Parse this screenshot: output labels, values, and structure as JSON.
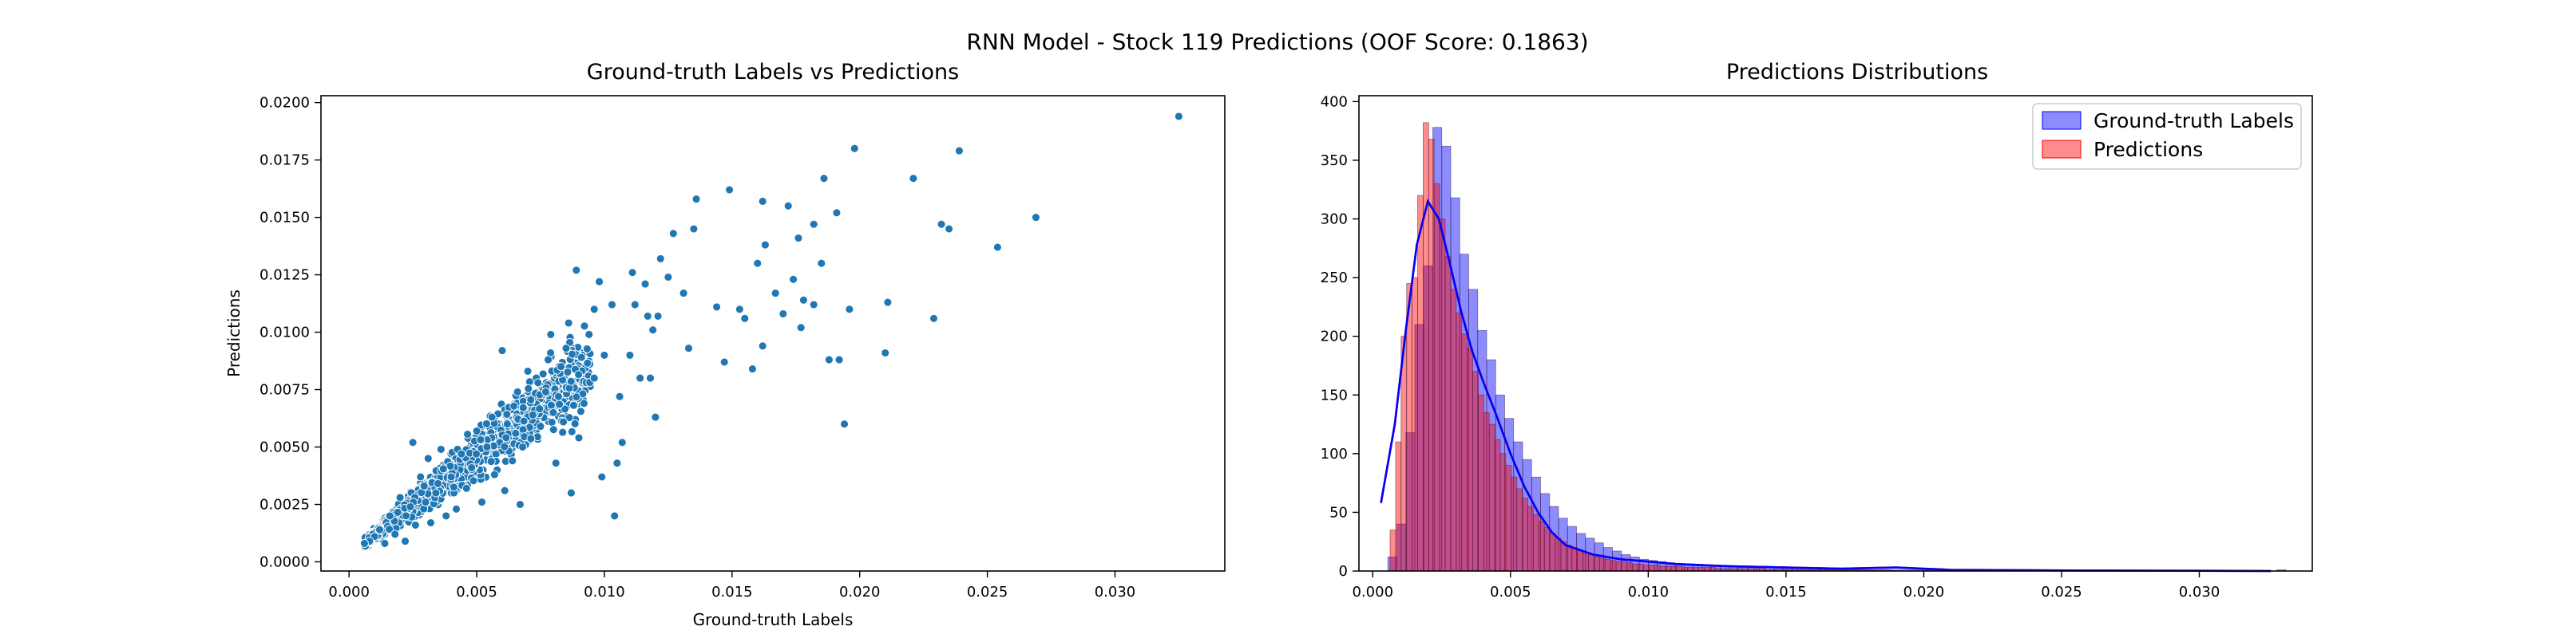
{
  "figure": {
    "suptitle": "RNN Model - Stock 119 Predictions (OOF Score: 0.1863)"
  },
  "chart_data": [
    {
      "type": "scatter",
      "title": "Ground-truth Labels vs Predictions",
      "xlabel": "Ground-truth Labels",
      "ylabel": "Predictions",
      "xlim": [
        -0.0011,
        0.0343
      ],
      "ylim": [
        -0.0004,
        0.0203
      ],
      "xticks": [
        0.0,
        0.005,
        0.01,
        0.015,
        0.02,
        0.025,
        0.03
      ],
      "xtick_labels": [
        "0.000",
        "0.005",
        "0.010",
        "0.015",
        "0.020",
        "0.025",
        "0.030"
      ],
      "yticks": [
        0.0,
        0.0025,
        0.005,
        0.0075,
        0.01,
        0.0125,
        0.015,
        0.0175,
        0.02
      ],
      "ytick_labels": [
        "0.0000",
        "0.0025",
        "0.0050",
        "0.0075",
        "0.0100",
        "0.0125",
        "0.0150",
        "0.0175",
        "0.0200"
      ],
      "color": "#1f77b4",
      "points": [
        [
          0.0325,
          0.0194
        ],
        [
          0.0269,
          0.015
        ],
        [
          0.0254,
          0.0137
        ],
        [
          0.0239,
          0.0179
        ],
        [
          0.0232,
          0.0147
        ],
        [
          0.0235,
          0.0145
        ],
        [
          0.0229,
          0.0106
        ],
        [
          0.0221,
          0.0167
        ],
        [
          0.0211,
          0.0113
        ],
        [
          0.021,
          0.0091
        ],
        [
          0.0198,
          0.018
        ],
        [
          0.0191,
          0.0152
        ],
        [
          0.0186,
          0.0167
        ],
        [
          0.0182,
          0.0147
        ],
        [
          0.0185,
          0.013
        ],
        [
          0.0182,
          0.0112
        ],
        [
          0.0188,
          0.0088
        ],
        [
          0.0192,
          0.0088
        ],
        [
          0.0194,
          0.006
        ],
        [
          0.0196,
          0.011
        ],
        [
          0.0177,
          0.0102
        ],
        [
          0.0174,
          0.0123
        ],
        [
          0.017,
          0.0108
        ],
        [
          0.0167,
          0.0117
        ],
        [
          0.0162,
          0.0157
        ],
        [
          0.0163,
          0.0138
        ],
        [
          0.016,
          0.013
        ],
        [
          0.0162,
          0.0094
        ],
        [
          0.0158,
          0.0084
        ],
        [
          0.0155,
          0.0106
        ],
        [
          0.0172,
          0.0155
        ],
        [
          0.0176,
          0.0141
        ],
        [
          0.0178,
          0.0114
        ],
        [
          0.0153,
          0.011
        ],
        [
          0.0149,
          0.0162
        ],
        [
          0.0144,
          0.0111
        ],
        [
          0.0147,
          0.0087
        ],
        [
          0.0136,
          0.0158
        ],
        [
          0.0135,
          0.0145
        ],
        [
          0.0133,
          0.0093
        ],
        [
          0.0131,
          0.0117
        ],
        [
          0.0127,
          0.0143
        ],
        [
          0.0125,
          0.0124
        ],
        [
          0.0122,
          0.0132
        ],
        [
          0.0121,
          0.0107
        ],
        [
          0.0117,
          0.0107
        ],
        [
          0.0118,
          0.008
        ],
        [
          0.012,
          0.0063
        ],
        [
          0.0114,
          0.008
        ],
        [
          0.0104,
          0.002
        ],
        [
          0.0099,
          0.0037
        ],
        [
          0.0107,
          0.0052
        ],
        [
          0.011,
          0.009
        ],
        [
          0.0111,
          0.0126
        ],
        [
          0.0103,
          0.0112
        ],
        [
          0.01,
          0.009
        ],
        [
          0.0098,
          0.0122
        ],
        [
          0.0096,
          0.011
        ],
        [
          0.0094,
          0.0099
        ],
        [
          0.0091,
          0.0089
        ],
        [
          0.0096,
          0.008
        ],
        [
          0.0092,
          0.0069
        ],
        [
          0.009,
          0.0054
        ],
        [
          0.0086,
          0.0104
        ],
        [
          0.0085,
          0.0093
        ],
        [
          0.0083,
          0.0085
        ],
        [
          0.0082,
          0.0072
        ],
        [
          0.008,
          0.0065
        ],
        [
          0.0078,
          0.0088
        ],
        [
          0.0077,
          0.0074
        ],
        [
          0.0075,
          0.0059
        ],
        [
          0.0074,
          0.0078
        ],
        [
          0.0072,
          0.0064
        ],
        [
          0.007,
          0.0083
        ],
        [
          0.0068,
          0.005
        ],
        [
          0.0066,
          0.0074
        ],
        [
          0.0064,
          0.0044
        ],
        [
          0.0062,
          0.006
        ],
        [
          0.006,
          0.0092
        ],
        [
          0.0058,
          0.004
        ],
        [
          0.0056,
          0.0063
        ],
        [
          0.0054,
          0.005
        ],
        [
          0.0052,
          0.0026
        ],
        [
          0.005,
          0.0057
        ],
        [
          0.0048,
          0.0041
        ],
        [
          0.0046,
          0.0032
        ],
        [
          0.0044,
          0.0047
        ],
        [
          0.0042,
          0.0023
        ],
        [
          0.004,
          0.0037
        ],
        [
          0.0038,
          0.002
        ],
        [
          0.0036,
          0.0049
        ],
        [
          0.0034,
          0.003
        ],
        [
          0.0032,
          0.0017
        ],
        [
          0.003,
          0.0026
        ],
        [
          0.0028,
          0.0037
        ],
        [
          0.0026,
          0.0016
        ],
        [
          0.0024,
          0.0024
        ],
        [
          0.0022,
          0.0009
        ],
        [
          0.002,
          0.0028
        ],
        [
          0.0018,
          0.0012
        ],
        [
          0.0016,
          0.002
        ],
        [
          0.0014,
          0.0008
        ],
        [
          0.0012,
          0.0014
        ],
        [
          0.001,
          0.0011
        ],
        [
          0.0008,
          0.0009
        ],
        [
          0.0006,
          0.0008
        ],
        [
          0.0025,
          0.0052
        ],
        [
          0.0031,
          0.0045
        ],
        [
          0.0087,
          0.003
        ],
        [
          0.0081,
          0.0043
        ],
        [
          0.0067,
          0.0025
        ],
        [
          0.0061,
          0.0031
        ],
        [
          0.0057,
          0.0038
        ],
        [
          0.0105,
          0.0043
        ],
        [
          0.0112,
          0.0112
        ],
        [
          0.0116,
          0.0121
        ],
        [
          0.0119,
          0.0101
        ],
        [
          0.0106,
          0.0072
        ],
        [
          0.0089,
          0.0127
        ],
        [
          0.0079,
          0.0099
        ]
      ],
      "cluster": {
        "x_range": [
          0.0006,
          0.0095
        ],
        "intercept": 0.0003,
        "slope": 0.87,
        "spread_frac": 0.22,
        "count": 1300
      }
    },
    {
      "type": "histogram",
      "title": "Predictions Distributions",
      "xlabel": "",
      "ylabel": "",
      "xlim": [
        -0.0005,
        0.0341
      ],
      "ylim": [
        0,
        405
      ],
      "xticks": [
        0.0,
        0.005,
        0.01,
        0.015,
        0.02,
        0.025,
        0.03
      ],
      "xtick_labels": [
        "0.000",
        "0.005",
        "0.010",
        "0.015",
        "0.020",
        "0.025",
        "0.030"
      ],
      "yticks": [
        0,
        50,
        100,
        150,
        200,
        250,
        300,
        350,
        400
      ],
      "ytick_labels": [
        "0",
        "50",
        "100",
        "150",
        "200",
        "250",
        "300",
        "350",
        "400"
      ],
      "legend_position": "upper right",
      "series": [
        {
          "name": "Ground-truth Labels",
          "face_color": "#0000ff",
          "face_opacity": 0.45,
          "kde_color": "#0000ff",
          "bin_start": 0.00055,
          "bin_width": 0.000326,
          "counts": [
            12,
            40,
            118,
            210,
            260,
            378,
            362,
            318,
            270,
            240,
            205,
            180,
            150,
            130,
            110,
            95,
            80,
            66,
            55,
            45,
            38,
            32,
            28,
            24,
            20,
            17,
            14,
            12,
            10,
            9,
            8,
            7,
            6,
            6,
            5,
            5,
            4,
            4,
            4,
            3,
            3,
            3,
            3,
            2,
            2,
            2,
            2,
            2,
            2,
            2,
            2,
            2,
            1,
            1,
            1,
            1,
            1,
            1,
            1,
            1,
            1,
            1,
            1,
            1,
            1,
            1,
            1,
            1,
            1,
            1,
            1,
            1,
            1,
            0,
            1,
            0,
            1,
            0,
            1,
            0,
            1,
            0,
            0,
            0,
            0,
            0,
            0,
            0,
            0,
            0,
            0,
            0,
            0,
            0,
            0,
            0,
            0,
            0,
            0,
            1
          ]
        },
        {
          "name": "Predictions",
          "face_color": "#ff0000",
          "face_opacity": 0.45,
          "kde_color": "#ff0000",
          "bin_start": 0.00063,
          "bin_width": 0.0002,
          "counts": [
            35,
            110,
            200,
            245,
            250,
            320,
            382,
            368,
            330,
            300,
            268,
            240,
            220,
            202,
            190,
            170,
            150,
            135,
            125,
            112,
            100,
            90,
            80,
            70,
            62,
            55,
            48,
            42,
            37,
            32,
            28,
            25,
            22,
            20,
            18,
            16,
            14,
            12,
            11,
            10,
            9,
            8,
            8,
            7,
            6,
            6,
            5,
            5,
            5,
            4,
            4,
            4,
            4,
            3,
            3,
            3,
            3,
            3,
            3,
            2,
            2,
            2,
            2,
            2,
            2,
            2,
            2,
            2,
            1,
            1,
            1,
            1,
            1,
            1,
            1,
            1,
            1,
            1,
            1,
            1,
            1,
            1,
            1,
            1,
            1,
            1,
            1,
            1,
            1,
            1,
            1
          ]
        }
      ],
      "kde_points": [
        [
          0.0003,
          58
        ],
        [
          0.0008,
          125
        ],
        [
          0.0012,
          205
        ],
        [
          0.0016,
          278
        ],
        [
          0.002,
          315
        ],
        [
          0.0024,
          300
        ],
        [
          0.0028,
          262
        ],
        [
          0.0032,
          222
        ],
        [
          0.0036,
          188
        ],
        [
          0.004,
          162
        ],
        [
          0.0045,
          132
        ],
        [
          0.005,
          100
        ],
        [
          0.0055,
          72
        ],
        [
          0.006,
          50
        ],
        [
          0.0065,
          33
        ],
        [
          0.007,
          22
        ],
        [
          0.008,
          14
        ],
        [
          0.009,
          10
        ],
        [
          0.01,
          8
        ],
        [
          0.011,
          6
        ],
        [
          0.013,
          4
        ],
        [
          0.015,
          3
        ],
        [
          0.017,
          2
        ],
        [
          0.019,
          3
        ],
        [
          0.021,
          1
        ],
        [
          0.025,
          0.5
        ],
        [
          0.03,
          0.2
        ],
        [
          0.0326,
          0
        ]
      ]
    }
  ]
}
